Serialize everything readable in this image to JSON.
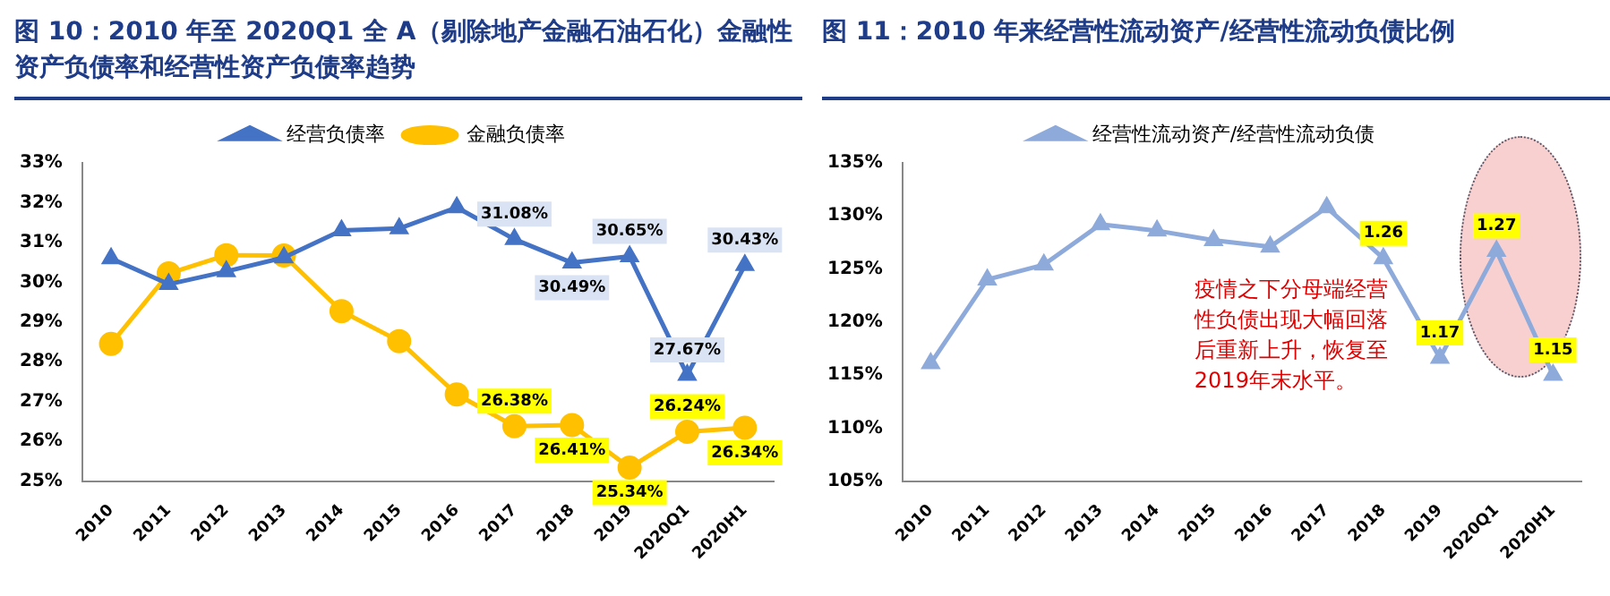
{
  "chart_data": [
    {
      "type": "line",
      "title": "图 10：2010 年至 2020Q1 全 A（剔除地产金融石油石化）金融性资产负债率和经营性资产负债率趋势",
      "categories": [
        "2010",
        "2011",
        "2012",
        "2013",
        "2014",
        "2015",
        "2016",
        "2017",
        "2018",
        "2019",
        "2020Q1",
        "2020H1"
      ],
      "ylim": [
        25,
        33
      ],
      "yticks": [
        {
          "value": 25,
          "label": "25%"
        },
        {
          "value": 26,
          "label": "26%"
        },
        {
          "value": 27,
          "label": "27%"
        },
        {
          "value": 28,
          "label": "28%"
        },
        {
          "value": 29,
          "label": "29%"
        },
        {
          "value": 30,
          "label": "30%"
        },
        {
          "value": 31,
          "label": "31%"
        },
        {
          "value": 32,
          "label": "32%"
        },
        {
          "value": 33,
          "label": "33%"
        }
      ],
      "grid": false,
      "legend": "top",
      "line_style": "solid",
      "series": [
        {
          "name": "经营负债率",
          "color": "#4472c4",
          "marker": "triangle",
          "values": [
            30.6,
            29.95,
            30.27,
            30.62,
            31.3,
            31.35,
            31.88,
            31.08,
            30.49,
            30.65,
            27.67,
            30.43
          ],
          "value_labels": [
            null,
            null,
            null,
            null,
            null,
            null,
            null,
            "31.08%",
            "30.49%",
            "30.65%",
            "27.67%",
            "30.43%"
          ]
        },
        {
          "name": "金融负债率",
          "color": "#ffc000",
          "marker": "circle",
          "values": [
            28.45,
            30.22,
            30.68,
            30.67,
            29.27,
            28.52,
            27.18,
            26.38,
            26.41,
            25.34,
            26.24,
            26.34
          ],
          "value_labels": [
            null,
            null,
            null,
            null,
            null,
            null,
            null,
            "26.38%",
            "26.41%",
            "25.34%",
            "26.24%",
            "26.34%"
          ]
        }
      ]
    },
    {
      "type": "line",
      "title": "图 11：2010 年来经营性流动资产/经营性流动负债比例",
      "categories": [
        "2010",
        "2011",
        "2012",
        "2013",
        "2014",
        "2015",
        "2016",
        "2017",
        "2018",
        "2019",
        "2020Q1",
        "2020H1"
      ],
      "ylim": [
        1.05,
        1.35
      ],
      "yticks": [
        {
          "value": 1.05,
          "label": "105%"
        },
        {
          "value": 1.1,
          "label": "110%"
        },
        {
          "value": 1.15,
          "label": "115%"
        },
        {
          "value": 1.2,
          "label": "120%"
        },
        {
          "value": 1.25,
          "label": "125%"
        },
        {
          "value": 1.3,
          "label": "130%"
        },
        {
          "value": 1.35,
          "label": "135%"
        }
      ],
      "grid": false,
      "legend": "top",
      "line_style": "solid",
      "annotations": [
        "疫情之下分母端经营性负债出现大幅回落后重新上升，恢复至2019年末水平。"
      ],
      "series": [
        {
          "name": "经营性流动资产/经营性流动负债",
          "color": "#8eaadb",
          "marker": "triangle",
          "values": [
            1.161,
            1.24,
            1.254,
            1.292,
            1.286,
            1.277,
            1.271,
            1.308,
            1.26,
            1.166,
            1.267,
            1.15
          ],
          "value_labels": [
            null,
            null,
            null,
            null,
            null,
            null,
            null,
            null,
            "1.26",
            "1.17",
            "1.27",
            "1.15"
          ]
        }
      ]
    }
  ]
}
